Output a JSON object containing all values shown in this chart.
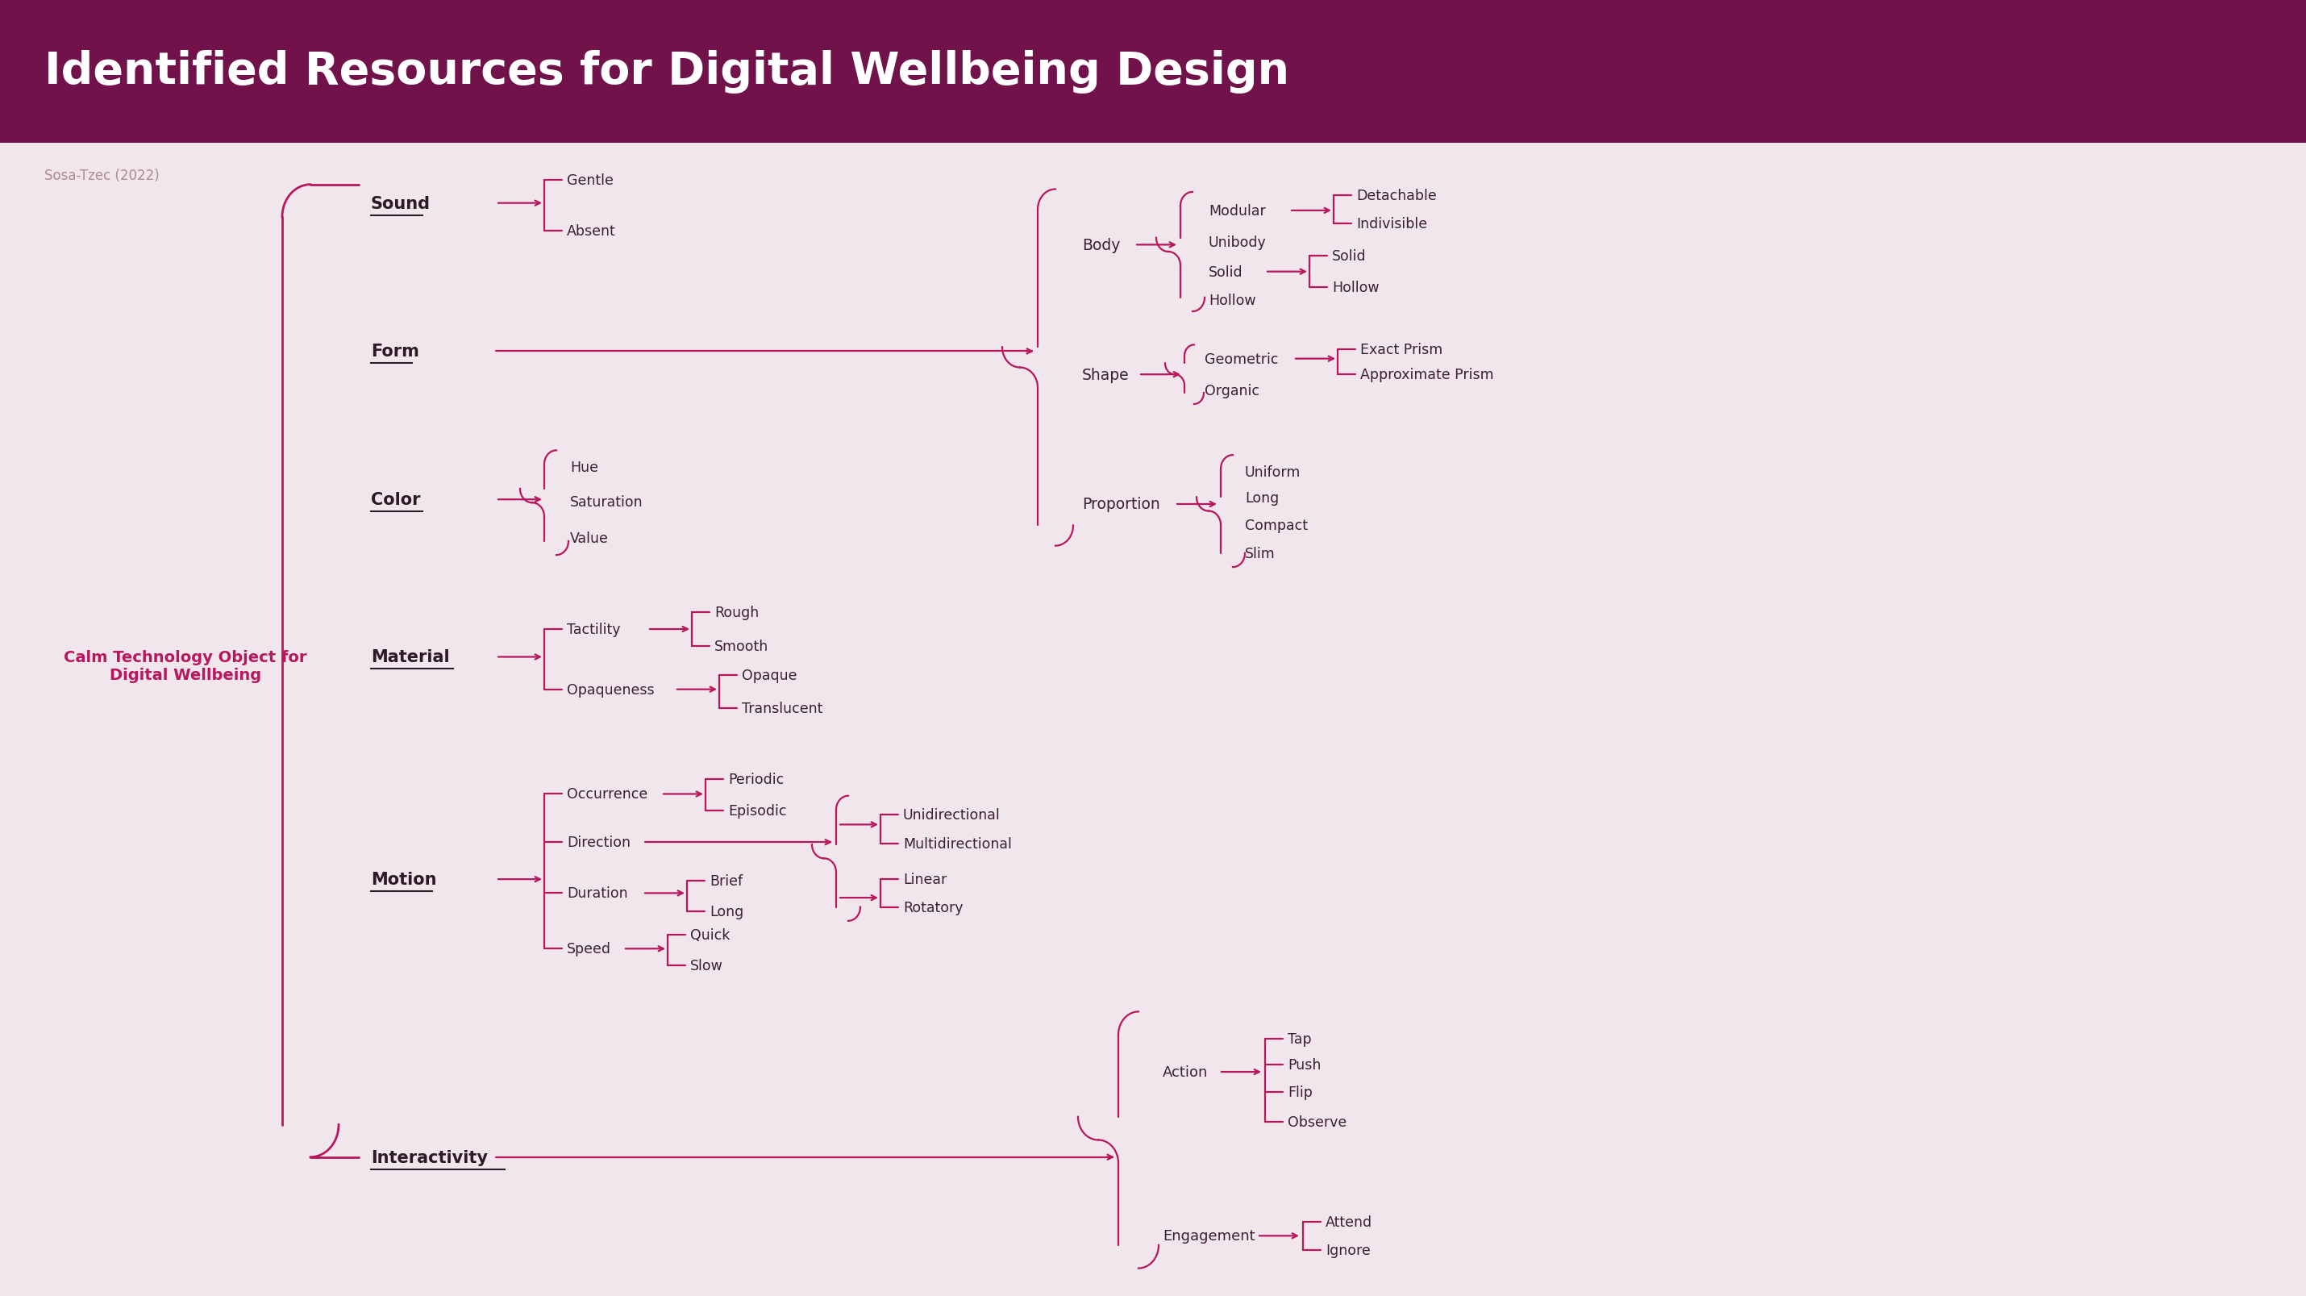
{
  "title": "Identified Resources for Digital Wellbeing Design",
  "subtitle": "Sosa-Tzec (2022)",
  "bg_color": "#f0e6ec",
  "header_color": "#72124a",
  "line_color": "#b8175e",
  "bold_text_color": "#2d1a24",
  "normal_text_color": "#3a2030",
  "muted_text_color": "#b08898",
  "root_label": "Calm Technology Object for\nDigital Wellbeing",
  "categories": [
    {
      "name": "Sound",
      "y": 11.8
    },
    {
      "name": "Form",
      "y": 10.2
    },
    {
      "name": "Color",
      "y": 8.6
    },
    {
      "name": "Material",
      "y": 6.9
    },
    {
      "name": "Motion",
      "y": 4.5
    },
    {
      "name": "Interactivity",
      "y": 1.5
    }
  ]
}
